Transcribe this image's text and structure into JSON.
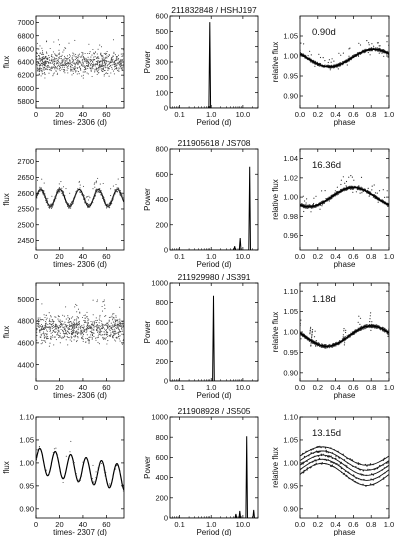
{
  "chart_data": [
    {
      "type": "scatter",
      "panel": "row1-lightcurve",
      "xlabel": "times- 2306 (d)",
      "ylabel": "flux",
      "xlim": [
        0,
        75
      ],
      "ylim": [
        5700,
        7100
      ],
      "xticks": [
        0,
        20,
        40,
        60
      ],
      "yticks": [
        5800,
        6000,
        6200,
        6400,
        6600,
        6800,
        7000
      ],
      "ytick_labels": [
        "5800",
        "6000",
        "6200",
        "6400",
        "6600",
        "6800",
        "7000"
      ],
      "series": [
        {
          "kind": "noise",
          "mean": 6380,
          "spread": 170
        }
      ]
    },
    {
      "type": "line",
      "panel": "row1-periodogram",
      "title": "211832848 / HSHJ197",
      "xlabel": "Period (d)",
      "ylabel": "Power",
      "xscale": "log",
      "xlim": [
        0.05,
        30
      ],
      "ylim": [
        0,
        600
      ],
      "xticks": [
        0.1,
        1.0,
        10.0
      ],
      "xtick_labels": [
        "0.1",
        "1.0",
        "10.0"
      ],
      "yticks": [
        0,
        100,
        200,
        300,
        400,
        500,
        600
      ],
      "ytick_labels": [
        "0",
        "100",
        "200",
        "300",
        "400",
        "500",
        "600"
      ],
      "peaks": [
        {
          "period": 0.9,
          "power": 560
        }
      ]
    },
    {
      "type": "scatter",
      "panel": "row1-phased",
      "annotation": "0.90d",
      "xlabel": "phase",
      "ylabel": "relative flux",
      "xlim": [
        0,
        1.0
      ],
      "ylim": [
        0.87,
        1.1
      ],
      "xticks": [
        0,
        0.2,
        0.4,
        0.6,
        0.8,
        1.0
      ],
      "xtick_labels": [
        "0.0",
        "0.2",
        "0.4",
        "0.6",
        "0.8",
        "1.0"
      ],
      "yticks": [
        0.9,
        0.95,
        1.0,
        1.05
      ],
      "ytick_labels": [
        "0.90",
        "0.95",
        "1.00",
        "1.05"
      ],
      "model": {
        "mean": 0.995,
        "amplitude": 0.022,
        "min_phase": 0.33
      }
    },
    {
      "type": "scatter",
      "panel": "row2-lightcurve",
      "xlabel": "times- 2306 (d)",
      "ylabel": "flux",
      "xlim": [
        0,
        75
      ],
      "ylim": [
        2420,
        2740
      ],
      "xticks": [
        0,
        20,
        40,
        60
      ],
      "yticks": [
        2450,
        2500,
        2550,
        2600,
        2650,
        2700
      ],
      "ytick_labels": [
        "2450",
        "2500",
        "2550",
        "2600",
        "2650",
        "2700"
      ],
      "series": [
        {
          "kind": "sine",
          "mean": 2585,
          "amplitude": 27,
          "period": 16.36
        }
      ]
    },
    {
      "type": "line",
      "panel": "row2-periodogram",
      "title": "211905618 / JS708",
      "xlabel": "Period (d)",
      "ylabel": "Power",
      "xscale": "log",
      "xlim": [
        0.05,
        30
      ],
      "ylim": [
        0,
        800
      ],
      "xticks": [
        0.1,
        1.0,
        10.0
      ],
      "xtick_labels": [
        "0.1",
        "1.0",
        "10.0"
      ],
      "yticks": [
        0,
        200,
        400,
        600,
        800
      ],
      "ytick_labels": [
        "0",
        "200",
        "400",
        "600",
        "800"
      ],
      "peaks": [
        {
          "period": 16.4,
          "power": 660
        },
        {
          "period": 8.2,
          "power": 95
        },
        {
          "period": 5.5,
          "power": 30
        }
      ]
    },
    {
      "type": "scatter",
      "panel": "row2-phased",
      "annotation": "16.36d",
      "xlabel": "phase",
      "ylabel": "relative flux",
      "xlim": [
        0,
        1.0
      ],
      "ylim": [
        0.945,
        1.05
      ],
      "xticks": [
        0,
        0.2,
        0.4,
        0.6,
        0.8,
        1.0
      ],
      "xtick_labels": [
        "0.0",
        "0.2",
        "0.4",
        "0.6",
        "0.8",
        "1.0"
      ],
      "yticks": [
        0.96,
        0.98,
        1.0,
        1.02,
        1.04
      ],
      "ytick_labels": [
        "0.96",
        "0.98",
        "1.00",
        "1.02",
        "1.04"
      ],
      "model": {
        "mean": 1.0,
        "amplitude": 0.01,
        "min_phase": 0.1
      }
    },
    {
      "type": "scatter",
      "panel": "row3-lightcurve",
      "xlabel": "times- 2306 (d)",
      "ylabel": "flux",
      "xlim": [
        0,
        75
      ],
      "ylim": [
        4250,
        5150
      ],
      "xticks": [
        0,
        20,
        40,
        60
      ],
      "yticks": [
        4400,
        4600,
        4800,
        5000
      ],
      "ytick_labels": [
        "4400",
        "4600",
        "4800",
        "5000"
      ],
      "series": [
        {
          "kind": "noise",
          "mean": 4730,
          "spread": 120
        }
      ]
    },
    {
      "type": "line",
      "panel": "row3-periodogram",
      "title": "211929980 / JS391",
      "xlabel": "Period (d)",
      "ylabel": "Power",
      "xscale": "log",
      "xlim": [
        0.05,
        30
      ],
      "ylim": [
        0,
        1000
      ],
      "xticks": [
        0.1,
        1.0,
        10.0
      ],
      "xtick_labels": [
        "0.1",
        "1.0",
        "10.0"
      ],
      "yticks": [
        0,
        200,
        400,
        600,
        800,
        1000
      ],
      "ytick_labels": [
        "0",
        "200",
        "400",
        "600",
        "800",
        "1000"
      ],
      "peaks": [
        {
          "period": 1.18,
          "power": 870
        }
      ]
    },
    {
      "type": "scatter",
      "panel": "row3-phased",
      "annotation": "1.18d",
      "xlabel": "phase",
      "ylabel": "relative flux",
      "xlim": [
        0,
        1.0
      ],
      "ylim": [
        0.88,
        1.12
      ],
      "xticks": [
        0,
        0.2,
        0.4,
        0.6,
        0.8,
        1.0
      ],
      "xtick_labels": [
        "0.0",
        "0.2",
        "0.4",
        "0.6",
        "0.8",
        "1.0"
      ],
      "yticks": [
        0.9,
        0.95,
        1.0,
        1.05,
        1.1
      ],
      "ytick_labels": [
        "0.90",
        "0.95",
        "1.00",
        "1.05",
        "1.10"
      ],
      "model": {
        "mean": 0.99,
        "amplitude": 0.025,
        "min_phase": 0.3
      }
    },
    {
      "type": "line",
      "panel": "row4-lightcurve",
      "xlabel": "times- 2307 (d)",
      "ylabel": "flux",
      "xlim": [
        0,
        75
      ],
      "ylim": [
        0.88,
        1.1
      ],
      "xticks": [
        0,
        20,
        40,
        60
      ],
      "yticks": [
        0.9,
        0.95,
        1.0,
        1.05,
        1.1
      ],
      "ytick_labels": [
        "0.90",
        "0.95",
        "1.00",
        "1.05",
        "1.10"
      ],
      "series": [
        {
          "kind": "sine_trend",
          "mean": 1.005,
          "amplitude": 0.028,
          "period": 13.15,
          "trend": -0.0005
        }
      ]
    },
    {
      "type": "line",
      "panel": "row4-periodogram",
      "title": "211908928 / JS505",
      "xlabel": "Period (d)",
      "ylabel": "Power",
      "xscale": "log",
      "xlim": [
        0.05,
        30
      ],
      "ylim": [
        0,
        1000
      ],
      "xticks": [
        0.1,
        1.0,
        10.0
      ],
      "xtick_labels": [
        "0.1",
        "1.0",
        "10.0"
      ],
      "yticks": [
        0,
        200,
        400,
        600,
        800,
        1000
      ],
      "ytick_labels": [
        "0",
        "200",
        "400",
        "600",
        "800",
        "1000"
      ],
      "peaks": [
        {
          "period": 13.2,
          "power": 810
        },
        {
          "period": 22,
          "power": 80
        },
        {
          "period": 8,
          "power": 70
        },
        {
          "period": 6,
          "power": 40
        }
      ]
    },
    {
      "type": "line",
      "panel": "row4-phased",
      "annotation": "13.15d",
      "xlabel": "phase",
      "ylabel": "relative flux",
      "xlim": [
        0,
        1.0
      ],
      "ylim": [
        0.88,
        1.1
      ],
      "xticks": [
        0,
        0.2,
        0.4,
        0.6,
        0.8,
        1.0
      ],
      "xtick_labels": [
        "0.0",
        "0.2",
        "0.4",
        "0.6",
        "0.8",
        "1.0"
      ],
      "yticks": [
        0.9,
        0.95,
        1.0,
        1.05,
        1.1
      ],
      "ytick_labels": [
        "0.90",
        "0.95",
        "1.00",
        "1.05",
        "1.10"
      ],
      "cycles": [
        {
          "mean": 1.015,
          "amplitude": 0.02
        },
        {
          "mean": 1.005,
          "amplitude": 0.021
        },
        {
          "mean": 0.995,
          "amplitude": 0.022
        },
        {
          "mean": 0.985,
          "amplitude": 0.023
        },
        {
          "mean": 0.975,
          "amplitude": 0.024
        }
      ]
    }
  ]
}
